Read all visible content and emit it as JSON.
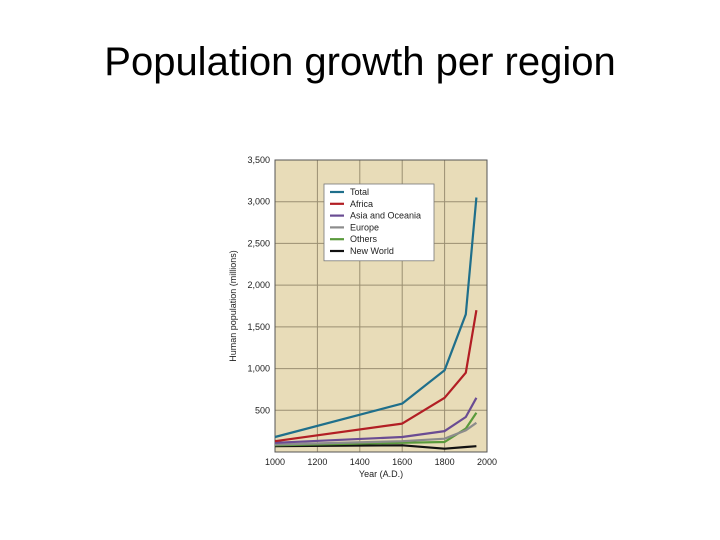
{
  "slide": {
    "title": "Population growth per region"
  },
  "chart_data": {
    "type": "line",
    "xlabel": "Year (A.D.)",
    "ylabel": "Human population (millions)",
    "xlim": [
      1000,
      2000
    ],
    "ylim": [
      0,
      3500
    ],
    "x_ticks": [
      "1000",
      "1200",
      "1400",
      "1600",
      "1800",
      "2000"
    ],
    "x_tick_values": [
      1000,
      1200,
      1400,
      1600,
      1800,
      2000
    ],
    "y_ticks": [
      "500",
      "1,000",
      "1,500",
      "2,000",
      "2,500",
      "3,000",
      "3,500"
    ],
    "y_tick_values": [
      500,
      1000,
      1500,
      2000,
      2500,
      3000,
      3500
    ],
    "grid": true,
    "legend_position": "top-right",
    "background_color": "#e8dcb8",
    "series": [
      {
        "name": "Total",
        "color": "#1f6f8b",
        "x": [
          1000,
          1600,
          1800,
          1900,
          1950
        ],
        "y": [
          180,
          580,
          980,
          1650,
          3050
        ]
      },
      {
        "name": "Africa",
        "color": "#b21e24",
        "x": [
          1000,
          1600,
          1800,
          1900,
          1950
        ],
        "y": [
          130,
          340,
          650,
          950,
          1700
        ]
      },
      {
        "name": "Asia and Oceania",
        "color": "#6a4c93",
        "x": [
          1000,
          1600,
          1800,
          1900,
          1950
        ],
        "y": [
          110,
          180,
          250,
          420,
          650
        ]
      },
      {
        "name": "Europe",
        "color": "#8c8c8c",
        "x": [
          1000,
          1600,
          1800,
          1900,
          1950
        ],
        "y": [
          90,
          130,
          160,
          260,
          350
        ]
      },
      {
        "name": "Others",
        "color": "#5a9a3c",
        "x": [
          1000,
          1600,
          1800,
          1900,
          1950
        ],
        "y": [
          80,
          110,
          120,
          280,
          470
        ]
      },
      {
        "name": "New World",
        "color": "#111111",
        "x": [
          1000,
          1600,
          1800,
          1900,
          1950
        ],
        "y": [
          70,
          80,
          40,
          60,
          70
        ]
      }
    ]
  }
}
